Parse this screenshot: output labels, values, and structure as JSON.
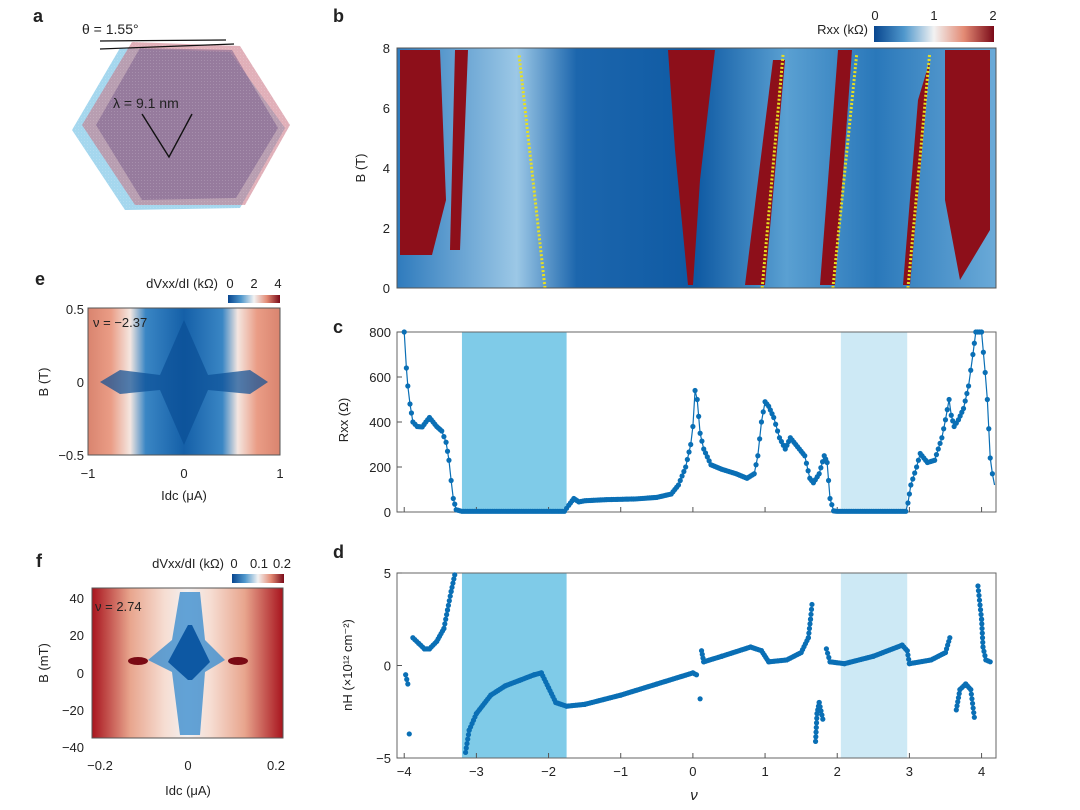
{
  "panel_labels": {
    "a": "a",
    "b": "b",
    "c": "c",
    "d": "d",
    "e": "e",
    "f": "f"
  },
  "panel_a": {
    "theta_label": "θ = 1.55°",
    "lambda_label": "λ = 9.1 nm",
    "colors": {
      "top_layer": "#c96f7f",
      "bottom_layer": "#5bb7e0"
    }
  },
  "chart_data": [
    {
      "id": "b",
      "type": "heatmap",
      "xlim": [
        -4.1,
        4.2
      ],
      "ylim": [
        0,
        8
      ],
      "ylabel": "B (T)",
      "yticks": [
        "0",
        "2",
        "4",
        "6",
        "8"
      ],
      "colorbar": {
        "label": "Rxx (kΩ)",
        "ticks": [
          "0",
          "1",
          "2"
        ],
        "range": [
          0,
          2
        ],
        "colors": [
          "#08519c",
          "#f4f4f4",
          "#7f0a14"
        ]
      },
      "fan_lines": [
        {
          "nu_at_B0": -2.05,
          "nu_at_B8": -2.41
        },
        {
          "nu_at_B0": 0.96,
          "nu_at_B8": 1.25
        },
        {
          "nu_at_B0": 1.94,
          "nu_at_B8": 2.27
        },
        {
          "nu_at_B0": 2.98,
          "nu_at_B8": 3.28
        }
      ],
      "fan_line_color": "#e8e020"
    },
    {
      "id": "c",
      "type": "line",
      "xlim": [
        -4.1,
        4.2
      ],
      "ylim": [
        0,
        800
      ],
      "ylabel": "Rxx (Ω)",
      "yticks": [
        "0",
        "200",
        "400",
        "600",
        "800"
      ],
      "xticks": [
        -4,
        -3,
        -2,
        -1,
        0,
        1,
        2,
        3,
        4
      ],
      "color": "#0a6fb5",
      "shaded": [
        {
          "x": [
            -3.2,
            -1.75
          ],
          "color": "#7fcbe8"
        },
        {
          "x": [
            2.05,
            2.97
          ],
          "color": "#cde9f5"
        }
      ],
      "x": [
        -4.0,
        -3.97,
        -3.95,
        -3.92,
        -3.88,
        -3.85,
        -3.82,
        -3.75,
        -3.7,
        -3.65,
        -3.6,
        -3.55,
        -3.48,
        -3.42,
        -3.38,
        -3.35,
        -3.32,
        -3.28,
        -3.2,
        -2.8,
        -2.4,
        -2.0,
        -1.78,
        -1.72,
        -1.65,
        -1.58,
        -1.5,
        -1.2,
        -0.8,
        -0.5,
        -0.3,
        -0.2,
        -0.1,
        -0.03,
        0.0,
        0.03,
        0.06,
        0.1,
        0.15,
        0.25,
        0.4,
        0.6,
        0.75,
        0.85,
        0.9,
        0.95,
        1.0,
        1.05,
        1.12,
        1.2,
        1.28,
        1.35,
        1.45,
        1.55,
        1.62,
        1.67,
        1.75,
        1.82,
        1.86,
        1.9,
        1.95,
        2.0,
        2.5,
        2.95,
        2.98,
        3.02,
        3.1,
        3.15,
        3.25,
        3.35,
        3.45,
        3.5,
        3.55,
        3.58,
        3.62,
        3.68,
        3.75,
        3.82,
        3.88,
        3.92,
        4.0,
        4.05,
        4.08,
        4.12,
        4.15,
        4.18
      ],
      "y": [
        800,
        640,
        560,
        480,
        400,
        390,
        380,
        378,
        400,
        420,
        400,
        380,
        360,
        310,
        230,
        140,
        60,
        10,
        3,
        3,
        3,
        3,
        3,
        30,
        60,
        45,
        50,
        55,
        58,
        65,
        80,
        120,
        200,
        300,
        380,
        540,
        500,
        350,
        280,
        210,
        190,
        170,
        150,
        170,
        250,
        400,
        490,
        470,
        420,
        330,
        280,
        330,
        290,
        250,
        150,
        130,
        170,
        250,
        220,
        60,
        5,
        3,
        3,
        3,
        40,
        120,
        200,
        260,
        220,
        230,
        330,
        410,
        500,
        430,
        380,
        410,
        460,
        560,
        700,
        800,
        800,
        620,
        500,
        240,
        170,
        120
      ]
    },
    {
      "id": "d",
      "type": "scatter",
      "xlim": [
        -4.1,
        4.2
      ],
      "ylim": [
        -5,
        5
      ],
      "xlabel": "ν",
      "ylabel": "nH (×10¹² cm⁻²)",
      "yticks": [
        "−5",
        "0",
        "5"
      ],
      "xticks": [
        "−4",
        "−3",
        "−2",
        "−1",
        "0",
        "1",
        "2",
        "3",
        "4"
      ],
      "color": "#0a6fb5",
      "shaded": [
        {
          "x": [
            -3.2,
            -1.75
          ],
          "color": "#7fcbe8"
        },
        {
          "x": [
            2.05,
            2.97
          ],
          "color": "#cde9f5"
        }
      ],
      "segments": [
        {
          "x": [
            -3.98,
            -3.95
          ],
          "y": [
            -0.5,
            -1.0
          ]
        },
        {
          "x": [
            -3.93
          ],
          "y": [
            -3.7
          ]
        },
        {
          "x": [
            -3.88,
            -3.8,
            -3.72,
            -3.65,
            -3.55,
            -3.45,
            -3.4,
            -3.35,
            -3.3
          ],
          "y": [
            1.5,
            1.2,
            0.9,
            0.9,
            1.3,
            2.0,
            3.0,
            4.0,
            4.9
          ]
        },
        {
          "x": [
            -3.15,
            -3.1,
            -3.0,
            -2.8,
            -2.6,
            -2.4,
            -2.2,
            -2.1,
            -2.0,
            -1.9,
            -1.75,
            -1.5,
            -1.0,
            -0.5,
            0.0,
            0.05
          ],
          "y": [
            -4.7,
            -3.5,
            -2.6,
            -1.6,
            -1.1,
            -0.8,
            -0.5,
            -0.4,
            -1.2,
            -2.0,
            -2.2,
            -2.1,
            -1.6,
            -1.0,
            -0.4,
            -0.5
          ]
        },
        {
          "x": [
            0.1
          ],
          "y": [
            -1.8
          ]
        },
        {
          "x": [
            0.12,
            0.15,
            0.4,
            0.8,
            0.95,
            1.05,
            1.3,
            1.5,
            1.6,
            1.63,
            1.65
          ],
          "y": [
            0.8,
            0.2,
            0.5,
            1.0,
            0.8,
            0.2,
            0.3,
            0.7,
            1.5,
            2.5,
            3.3
          ]
        },
        {
          "x": [
            1.7,
            1.72,
            1.75,
            1.8
          ],
          "y": [
            -4.1,
            -2.6,
            -2.0,
            -2.9
          ]
        },
        {
          "x": [
            1.85,
            1.9,
            2.1,
            2.5,
            2.9,
            2.97,
            3.0,
            3.3,
            3.5,
            3.56
          ],
          "y": [
            0.9,
            0.2,
            0.1,
            0.5,
            1.1,
            0.8,
            0.1,
            0.3,
            0.7,
            1.5
          ]
        },
        {
          "x": [
            3.65,
            3.7,
            3.78,
            3.85,
            3.9
          ],
          "y": [
            -2.4,
            -1.3,
            -1.0,
            -1.3,
            -2.8
          ]
        },
        {
          "x": [
            3.95,
            4.0,
            4.02,
            4.06,
            4.12
          ],
          "y": [
            4.3,
            2.5,
            1.0,
            0.3,
            0.2
          ]
        }
      ]
    },
    {
      "id": "e",
      "type": "heatmap",
      "annotation": "ν = −2.37",
      "xlim": [
        -1,
        1
      ],
      "ylim": [
        -0.5,
        0.5
      ],
      "xlabel": "Idc (μA)",
      "ylabel": "B (T)",
      "xticks": [
        "−1",
        "0",
        "1"
      ],
      "yticks": [
        "−0.5",
        "0",
        "0.5"
      ],
      "colorbar": {
        "label": "dVxx/dI (kΩ)",
        "ticks": [
          "0",
          "2",
          "4"
        ],
        "range": [
          0,
          4
        ]
      }
    },
    {
      "id": "f",
      "type": "heatmap",
      "annotation": "ν =  2.74",
      "xlim": [
        -0.2,
        0.2
      ],
      "ylim": [
        -40,
        40
      ],
      "xlabel": "Idc (μA)",
      "ylabel": "B (mT)",
      "xticks": [
        "−0.2",
        "0",
        "0.2"
      ],
      "yticks": [
        "−40",
        "−20",
        "0",
        "20",
        "40"
      ],
      "colorbar": {
        "label": "dVxx/dI (kΩ)",
        "ticks": [
          "0",
          "0.1",
          "0.2"
        ],
        "range": [
          0,
          0.2
        ]
      }
    }
  ]
}
